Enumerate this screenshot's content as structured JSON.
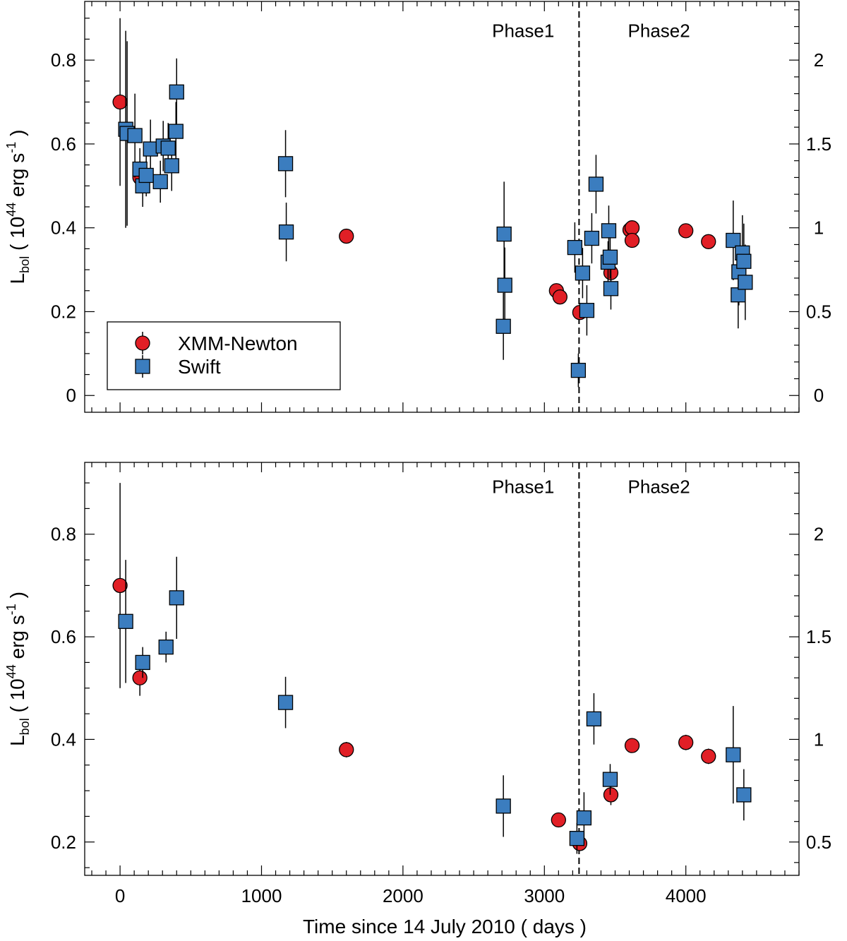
{
  "chart_data": [
    {
      "type": "scatter",
      "panel": "top",
      "xlabel": "",
      "ylabel_main": "L",
      "ylabel_sub": "bol",
      "ylabel_rest_1": " ( 10",
      "ylabel_sup_1": "44",
      "ylabel_rest_2": " erg s",
      "ylabel_sup_2": "-1",
      "ylabel_rest_3": " )",
      "xlim": [
        -250,
        4800
      ],
      "ylim": [
        -0.04,
        0.94
      ],
      "x_ticks": [
        0,
        1000,
        2000,
        3000,
        4000
      ],
      "x_tick_labels": [
        "",
        "",
        "",
        "",
        ""
      ],
      "y_ticks": [
        0,
        0.2,
        0.4,
        0.6,
        0.8
      ],
      "y_tick_labels": [
        "0",
        "0.2",
        "0.4",
        "0.6",
        "0.8"
      ],
      "y2_ticks": [
        0,
        0.5,
        1,
        1.5,
        2
      ],
      "y2_scale": 2.5,
      "y2_tick_labels": [
        "0",
        "0.5",
        "1",
        "1.5",
        "2"
      ],
      "vline_x": 3245,
      "phase_labels": [
        {
          "text": "Phase1",
          "x": 2630,
          "y": 0.855
        },
        {
          "text": "Phase2",
          "x": 3590,
          "y": 0.855
        }
      ],
      "legend": {
        "location": "lower-left",
        "entries": [
          {
            "label": "XMM-Newton",
            "marker": "circle"
          },
          {
            "label": "Swift",
            "marker": "square"
          }
        ]
      },
      "series": [
        {
          "name": "XMM-Newton",
          "marker": "circle",
          "color": "#e11f26",
          "points": [
            {
              "x": 0,
              "y": 0.7,
              "yerr": 0.2
            },
            {
              "x": 140,
              "y": 0.52,
              "yerr": 0.02
            },
            {
              "x": 1600,
              "y": 0.38,
              "yerr": 0.015
            },
            {
              "x": 3085,
              "y": 0.25,
              "yerr": 0.01
            },
            {
              "x": 3110,
              "y": 0.235,
              "yerr": 0.01
            },
            {
              "x": 3250,
              "y": 0.198,
              "yerr": 0.01
            },
            {
              "x": 3470,
              "y": 0.293,
              "yerr": 0.02
            },
            {
              "x": 3605,
              "y": 0.395,
              "yerr": 0.015
            },
            {
              "x": 3620,
              "y": 0.4,
              "yerr": 0.015
            },
            {
              "x": 3620,
              "y": 0.37,
              "yerr": 0.015
            },
            {
              "x": 4000,
              "y": 0.393,
              "yerr": 0.015
            },
            {
              "x": 4160,
              "y": 0.367,
              "yerr": 0.015
            }
          ]
        },
        {
          "name": "Swift",
          "marker": "square",
          "color": "#3b7dbf",
          "points": [
            {
              "x": 40,
              "y": 0.635,
              "yerr": 0.235
            },
            {
              "x": 50,
              "y": 0.625,
              "yerr": 0.22
            },
            {
              "x": 105,
              "y": 0.62,
              "yerr": 0.1
            },
            {
              "x": 140,
              "y": 0.54,
              "yerr": 0.05
            },
            {
              "x": 160,
              "y": 0.5,
              "yerr": 0.05
            },
            {
              "x": 185,
              "y": 0.525,
              "yerr": 0.05
            },
            {
              "x": 215,
              "y": 0.588,
              "yerr": 0.07
            },
            {
              "x": 285,
              "y": 0.51,
              "yerr": 0.05
            },
            {
              "x": 305,
              "y": 0.595,
              "yerr": 0.06
            },
            {
              "x": 340,
              "y": 0.59,
              "yerr": 0.06
            },
            {
              "x": 365,
              "y": 0.548,
              "yerr": 0.06
            },
            {
              "x": 395,
              "y": 0.63,
              "yerr": 0.07
            },
            {
              "x": 400,
              "y": 0.724,
              "yerr": 0.08
            },
            {
              "x": 1170,
              "y": 0.553,
              "yerr": 0.08
            },
            {
              "x": 1175,
              "y": 0.39,
              "yerr": 0.07
            },
            {
              "x": 2710,
              "y": 0.165,
              "yerr": 0.08
            },
            {
              "x": 2715,
              "y": 0.385,
              "yerr": 0.125
            },
            {
              "x": 2720,
              "y": 0.263,
              "yerr": 0.09
            },
            {
              "x": 3215,
              "y": 0.353,
              "yerr": 0.06
            },
            {
              "x": 3240,
              "y": 0.06,
              "yerr": 0.04
            },
            {
              "x": 3270,
              "y": 0.292,
              "yerr": 0.06
            },
            {
              "x": 3300,
              "y": 0.203,
              "yerr": 0.06
            },
            {
              "x": 3335,
              "y": 0.375,
              "yerr": 0.06
            },
            {
              "x": 3365,
              "y": 0.504,
              "yerr": 0.07
            },
            {
              "x": 3450,
              "y": 0.318,
              "yerr": 0.05
            },
            {
              "x": 3455,
              "y": 0.393,
              "yerr": 0.06
            },
            {
              "x": 3465,
              "y": 0.33,
              "yerr": 0.05
            },
            {
              "x": 3470,
              "y": 0.255,
              "yerr": 0.05
            },
            {
              "x": 4335,
              "y": 0.37,
              "yerr": 0.095
            },
            {
              "x": 4370,
              "y": 0.24,
              "yerr": 0.08
            },
            {
              "x": 4375,
              "y": 0.295,
              "yerr": 0.08
            },
            {
              "x": 4400,
              "y": 0.34,
              "yerr": 0.09
            },
            {
              "x": 4410,
              "y": 0.32,
              "yerr": 0.09
            },
            {
              "x": 4420,
              "y": 0.27,
              "yerr": 0.09
            }
          ]
        }
      ]
    },
    {
      "type": "scatter",
      "panel": "bottom",
      "xlabel": "Time since 14 July 2010 ( days )",
      "ylabel_main": "L",
      "ylabel_sub": "bol",
      "ylabel_rest_1": " ( 10",
      "ylabel_sup_1": "44",
      "ylabel_rest_2": " erg s",
      "ylabel_sup_2": "-1",
      "ylabel_rest_3": " )",
      "xlim": [
        -250,
        4800
      ],
      "ylim": [
        0.135,
        0.94
      ],
      "x_ticks": [
        0,
        1000,
        2000,
        3000,
        4000
      ],
      "x_tick_labels": [
        "0",
        "1000",
        "2000",
        "3000",
        "4000"
      ],
      "y_ticks": [
        0.2,
        0.4,
        0.6,
        0.8
      ],
      "y_tick_labels": [
        "0.2",
        "0.4",
        "0.6",
        "0.8"
      ],
      "y2_ticks": [
        0.5,
        1,
        1.5,
        2
      ],
      "y2_scale": 2.5,
      "y2_tick_labels": [
        "0.5",
        "1",
        "1.5",
        "2"
      ],
      "vline_x": 3245,
      "phase_labels": [
        {
          "text": "Phase1",
          "x": 2630,
          "y": 0.88
        },
        {
          "text": "Phase2",
          "x": 3590,
          "y": 0.88
        }
      ],
      "series": [
        {
          "name": "XMM-Newton",
          "marker": "circle",
          "color": "#e11f26",
          "points": [
            {
              "x": 0,
              "y": 0.7,
              "yerr": 0.2
            },
            {
              "x": 140,
              "y": 0.52,
              "yerr": 0.035
            },
            {
              "x": 1600,
              "y": 0.38,
              "yerr": 0.015
            },
            {
              "x": 3100,
              "y": 0.243,
              "yerr": 0.01
            },
            {
              "x": 3250,
              "y": 0.197,
              "yerr": 0.01
            },
            {
              "x": 3470,
              "y": 0.292,
              "yerr": 0.02
            },
            {
              "x": 3620,
              "y": 0.388,
              "yerr": 0.01
            },
            {
              "x": 4000,
              "y": 0.394,
              "yerr": 0.015
            },
            {
              "x": 4160,
              "y": 0.367,
              "yerr": 0.015
            }
          ]
        },
        {
          "name": "Swift",
          "marker": "square",
          "color": "#3b7dbf",
          "points": [
            {
              "x": 40,
              "y": 0.63,
              "yerr": 0.12
            },
            {
              "x": 160,
              "y": 0.55,
              "yerr": 0.03
            },
            {
              "x": 325,
              "y": 0.58,
              "yerr": 0.03
            },
            {
              "x": 400,
              "y": 0.676,
              "yerr": 0.08
            },
            {
              "x": 1170,
              "y": 0.472,
              "yerr": 0.05
            },
            {
              "x": 2710,
              "y": 0.27,
              "yerr": 0.06
            },
            {
              "x": 3230,
              "y": 0.207,
              "yerr": 0.03
            },
            {
              "x": 3280,
              "y": 0.247,
              "yerr": 0.05
            },
            {
              "x": 3350,
              "y": 0.44,
              "yerr": 0.05
            },
            {
              "x": 3465,
              "y": 0.322,
              "yerr": 0.03
            },
            {
              "x": 4335,
              "y": 0.37,
              "yerr": 0.095
            },
            {
              "x": 4410,
              "y": 0.292,
              "yerr": 0.05
            }
          ]
        }
      ]
    }
  ]
}
